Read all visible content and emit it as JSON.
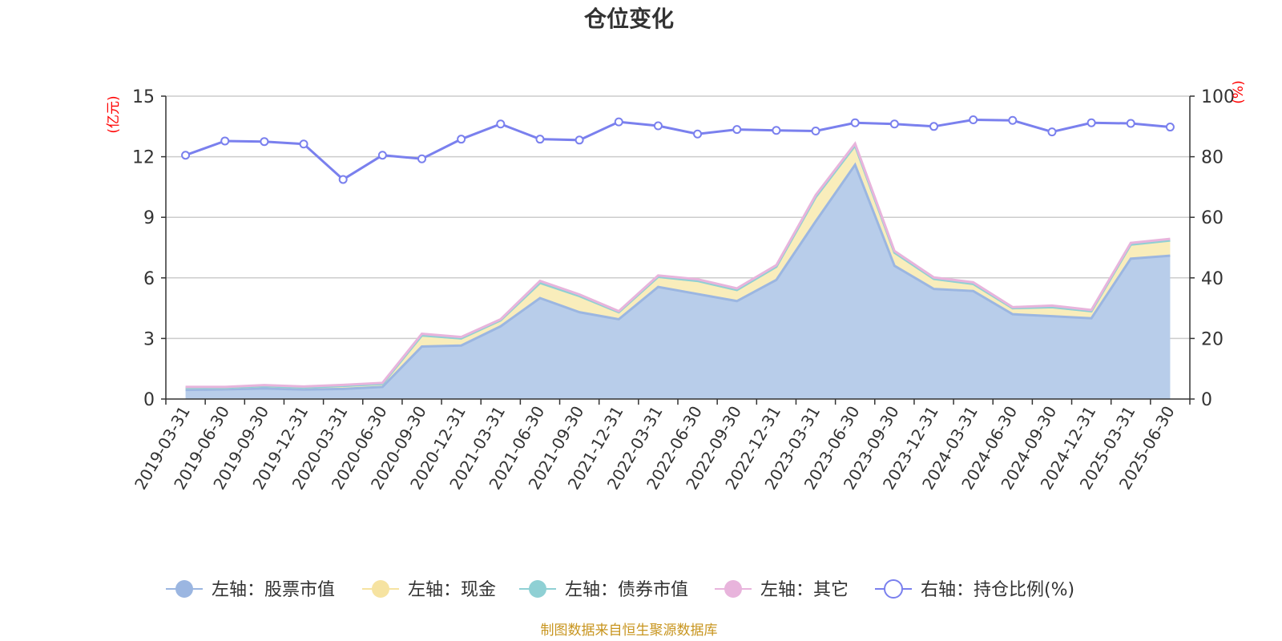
{
  "chart_data": {
    "type": "area",
    "title": "仓位变化",
    "source": "制图数据来自恒生聚源数据库",
    "y_left_unit": "(亿元)",
    "y_right_unit": "(%)",
    "y_left_range": [
      0,
      15
    ],
    "y_left_ticks": [
      "0",
      "3",
      "6",
      "9",
      "12",
      "15"
    ],
    "y_right_range": [
      0,
      100
    ],
    "y_right_ticks": [
      "0",
      "20",
      "40",
      "60",
      "80",
      "100"
    ],
    "grid": true,
    "legend_position": "bottom",
    "categories": [
      "2019-03-31",
      "2019-06-30",
      "2019-09-30",
      "2019-12-31",
      "2020-03-31",
      "2020-06-30",
      "2020-09-30",
      "2020-12-31",
      "2021-03-31",
      "2021-06-30",
      "2021-09-30",
      "2021-12-31",
      "2022-03-31",
      "2022-06-30",
      "2022-09-30",
      "2022-12-31",
      "2023-03-31",
      "2023-06-30",
      "2023-09-30",
      "2023-12-31",
      "2024-03-31",
      "2024-06-30",
      "2024-09-30",
      "2024-12-31",
      "2025-03-31",
      "2025-06-30"
    ],
    "series": [
      {
        "name": "左轴：股票市值",
        "axis": "left",
        "color": "#9bb6e1",
        "fill": "#b8cdea",
        "values": [
          0.45,
          0.48,
          0.52,
          0.47,
          0.5,
          0.6,
          2.6,
          2.65,
          3.6,
          5.0,
          4.3,
          3.95,
          5.55,
          5.2,
          4.85,
          5.9,
          8.8,
          11.6,
          6.6,
          5.45,
          5.35,
          4.2,
          4.1,
          4.0,
          6.95,
          7.1
        ]
      },
      {
        "name": "左轴：现金",
        "axis": "left",
        "color": "#f6e3a1",
        "fill": "#f9edbb",
        "values": [
          0.1,
          0.08,
          0.12,
          0.1,
          0.15,
          0.15,
          0.55,
          0.35,
          0.3,
          0.75,
          0.8,
          0.35,
          0.5,
          0.65,
          0.55,
          0.65,
          1.2,
          0.95,
          0.65,
          0.5,
          0.35,
          0.3,
          0.45,
          0.35,
          0.7,
          0.75
        ]
      },
      {
        "name": "左轴：债券市值",
        "axis": "left",
        "color": "#8fd0d4",
        "fill": "#bfe6e8",
        "values": [
          0,
          0,
          0,
          0,
          0,
          0,
          0,
          0,
          0,
          0,
          0,
          0,
          0,
          0,
          0,
          0,
          0,
          0,
          0,
          0,
          0,
          0,
          0,
          0,
          0,
          0
        ]
      },
      {
        "name": "左轴：其它",
        "axis": "left",
        "color": "#e8b4dc",
        "fill": "#f3d5ec",
        "values": [
          0.05,
          0.04,
          0.05,
          0.05,
          0.05,
          0.05,
          0.08,
          0.07,
          0.05,
          0.1,
          0.08,
          0.05,
          0.07,
          0.08,
          0.08,
          0.08,
          0.1,
          0.1,
          0.08,
          0.07,
          0.08,
          0.05,
          0.08,
          0.06,
          0.08,
          0.08
        ]
      },
      {
        "name": "右轴：持仓比例(%)",
        "axis": "right",
        "color": "#7a80ee",
        "values": [
          80.5,
          85.2,
          85.0,
          84.2,
          72.5,
          80.5,
          79.3,
          85.8,
          90.8,
          85.8,
          85.5,
          91.5,
          90.2,
          87.5,
          89.0,
          88.7,
          88.5,
          91.2,
          90.8,
          90.0,
          92.2,
          92.0,
          88.2,
          91.2,
          91.0,
          89.8
        ]
      }
    ]
  }
}
